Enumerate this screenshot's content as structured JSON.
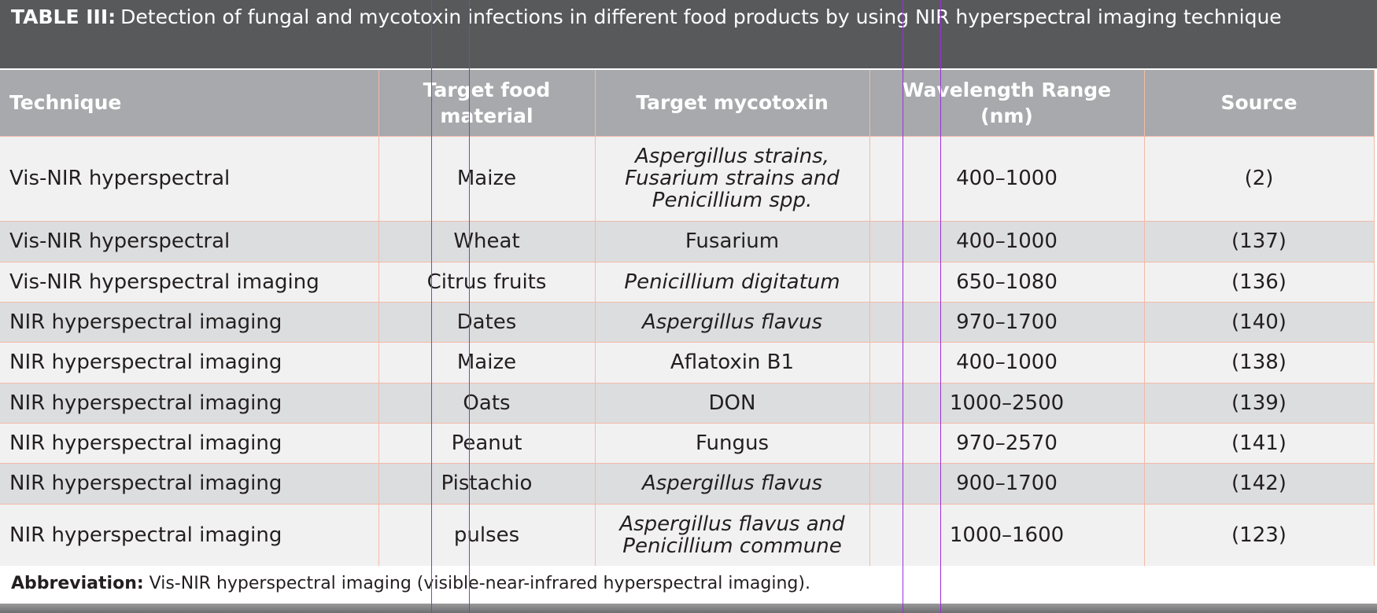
{
  "header": {
    "label": "TABLE III:",
    "title": "Detection of fungal and mycotoxin infections in different food products by using NIR hyperspectral imaging technique"
  },
  "table": {
    "columns": [
      "Technique",
      "Target food material",
      "Target mycotoxin",
      "Wavelength Range (nm)",
      "Source"
    ],
    "rows": [
      [
        "Vis-NIR hyperspectral",
        "Maize",
        "Aspergillus strains, Fusarium strains and Penicillium spp.",
        "400–1000",
        "(2)"
      ],
      [
        "Vis-NIR hyperspectral",
        "Wheat",
        "Fusarium",
        "400–1000",
        "(137)"
      ],
      [
        "Vis-NIR hyperspectral imaging",
        "Citrus fruits",
        "Penicillium digitatum",
        "650–1080",
        "(136)"
      ],
      [
        "NIR hyperspectral imaging",
        "Dates",
        "Aspergillus flavus",
        "970–1700",
        "(140)"
      ],
      [
        "NIR hyperspectral imaging",
        "Maize",
        "Aflatoxin B1",
        "400–1000",
        "(138)"
      ],
      [
        "NIR hyperspectral imaging",
        "Oats",
        "DON",
        "1000–2500",
        "(139)"
      ],
      [
        "NIR hyperspectral imaging",
        "Peanut",
        "Fungus",
        "970–2570",
        "(141)"
      ],
      [
        "NIR hyperspectral imaging",
        "Pistachio",
        "Aspergillus flavus",
        "900–1700",
        "(142)"
      ],
      [
        "NIR hyperspectral imaging",
        "pulses",
        "Aspergillus flavus and Penicillium commune",
        "1000–1600",
        "(123)"
      ]
    ]
  },
  "footer": {
    "label": "Abbreviation:",
    "text": "Vis-NIR hyperspectral imaging (visible-near-infrared hyperspectral imaging)."
  }
}
